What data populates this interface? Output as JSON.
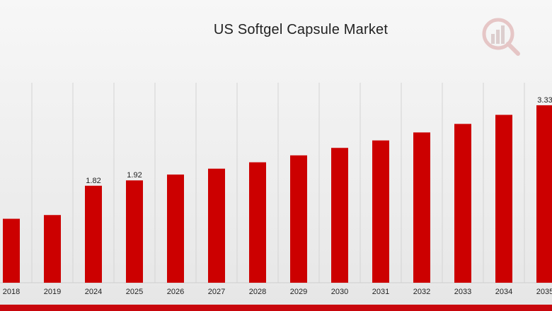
{
  "colors": {
    "bar": "#cc0000",
    "grid": "#d4d4d4",
    "accent": "#c8060c"
  },
  "logo_icon": "market-research-logo-icon",
  "chart_data": {
    "type": "bar",
    "title": "US Softgel Capsule Market",
    "xlabel": "",
    "ylabel": "",
    "categories": [
      "2018",
      "2019",
      "2024",
      "2025",
      "2026",
      "2027",
      "2028",
      "2029",
      "2030",
      "2031",
      "2032",
      "2033",
      "2034",
      "2035"
    ],
    "values": [
      1.2,
      1.27,
      1.82,
      1.92,
      2.03,
      2.14,
      2.26,
      2.39,
      2.53,
      2.67,
      2.82,
      2.98,
      3.15,
      3.33
    ],
    "data_labels": [
      "",
      "",
      "1.82",
      "1.92",
      "",
      "",
      "",
      "",
      "",
      "",
      "",
      "",
      "",
      "3.33"
    ],
    "ylim": [
      0,
      3.5
    ],
    "grid": {
      "vertical": true,
      "horizontal": false
    },
    "legend": "none"
  }
}
